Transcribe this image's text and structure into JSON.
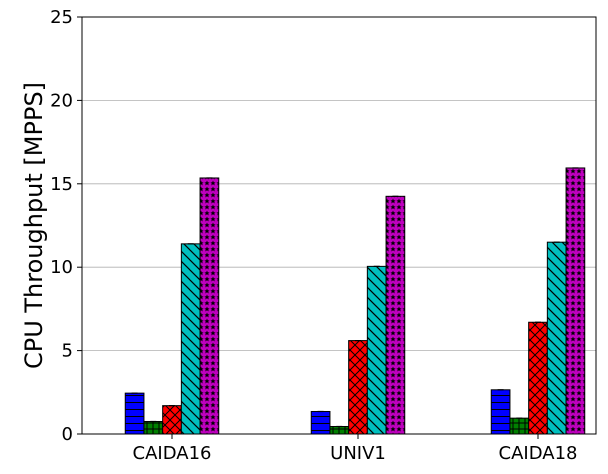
{
  "chart_data": {
    "type": "bar",
    "title": "",
    "xlabel": "",
    "ylabel": "CPU Throughput [MPPS]",
    "ylim": [
      0,
      25
    ],
    "yticks": [
      0,
      5,
      10,
      15,
      20,
      25
    ],
    "grid": "y",
    "legend": "none",
    "categories": [
      "CAIDA16",
      "UNIV1",
      "CAIDA18"
    ],
    "series": [
      {
        "values": [
          2.45,
          1.35,
          2.65
        ],
        "color": "#0000ff",
        "hatch": "horizontal"
      },
      {
        "values": [
          0.75,
          0.45,
          0.95
        ],
        "color": "#008000",
        "hatch": "grid"
      },
      {
        "values": [
          1.7,
          5.6,
          6.7
        ],
        "color": "#ff0000",
        "hatch": "cross"
      },
      {
        "values": [
          11.4,
          10.05,
          11.5
        ],
        "color": "#00bfbf",
        "hatch": "backslash"
      },
      {
        "values": [
          15.35,
          14.25,
          15.95
        ],
        "color": "#bf00bf",
        "hatch": "stars"
      }
    ]
  }
}
